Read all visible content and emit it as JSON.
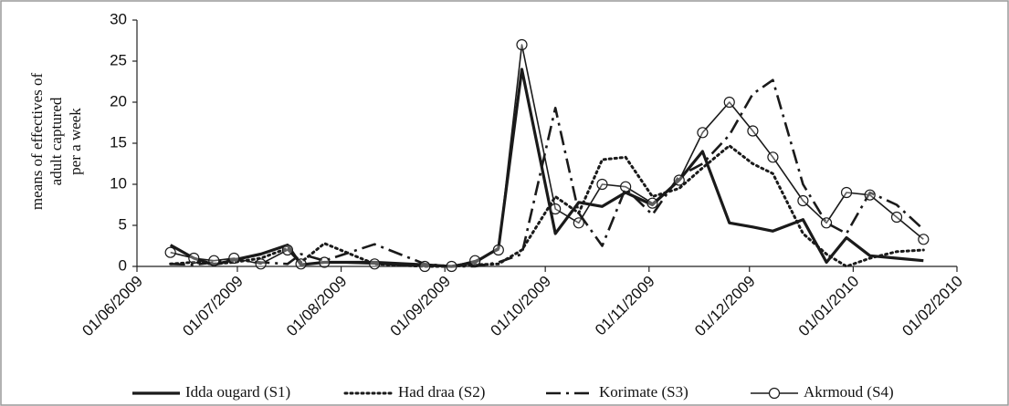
{
  "chart_data": {
    "type": "line",
    "ylabel": [
      "means of effectives of",
      "adult captured",
      "per a week"
    ],
    "x": [
      "11/06/2009",
      "18/06/2009",
      "24/06/2009",
      "30/06/2009",
      "08/07/2009",
      "16/07/2009",
      "20/07/2009",
      "27/07/2009",
      "11/08/2009",
      "26/08/2009",
      "03/09/2009",
      "10/09/2009",
      "17/09/2009",
      "24/09/2009",
      "04/10/2009",
      "11/10/2009",
      "18/10/2009",
      "25/10/2009",
      "02/11/2009",
      "10/11/2009",
      "17/11/2009",
      "25/11/2009",
      "02/12/2009",
      "08/12/2009",
      "17/12/2009",
      "24/12/2009",
      "30/12/2009",
      "06/01/2010",
      "14/01/2010",
      "22/01/2010"
    ],
    "xlim": [
      "01/06/2009",
      "01/02/2010"
    ],
    "xticks": [
      "01/06/2009",
      "01/07/2009",
      "01/08/2009",
      "01/09/2009",
      "01/10/2009",
      "01/11/2009",
      "01/12/2009",
      "01/01/2010",
      "01/02/2010"
    ],
    "ylim": [
      0,
      30
    ],
    "yticks": [
      0,
      5,
      10,
      15,
      20,
      25,
      30
    ],
    "series": [
      {
        "name": "Idda ougard (S1)",
        "color": "#1a1a1a",
        "style": "solid",
        "width": 3.2,
        "marker": "none",
        "values": [
          2.6,
          1.0,
          0.2,
          0.8,
          1.5,
          2.6,
          0.2,
          0.5,
          0.5,
          0.2,
          0,
          0.5,
          2.2,
          24,
          4,
          7.8,
          7.3,
          9,
          7.5,
          10.5,
          14,
          5.3,
          4.8,
          4.3,
          5.7,
          0.5,
          3.5,
          1.3,
          1.0,
          0.7
        ]
      },
      {
        "name": "Had draa (S2)",
        "color": "#1a1a1a",
        "style": "dotted",
        "width": 3,
        "marker": "none",
        "values": [
          0.3,
          0.5,
          0.3,
          0.5,
          1.0,
          2.2,
          0.5,
          2.8,
          0.3,
          0,
          0,
          0.2,
          0.3,
          2,
          8.5,
          6.5,
          13,
          13.3,
          8.5,
          9.5,
          12,
          14.7,
          12.5,
          11.3,
          4,
          1.5,
          0,
          1,
          1.8,
          2
        ]
      },
      {
        "name": "Korimate (S3)",
        "color": "#1a1a1a",
        "style": "dashdot",
        "width": 2.6,
        "marker": "none",
        "values": [
          0.3,
          0.2,
          0.5,
          0.8,
          0.5,
          0.3,
          1.5,
          0.7,
          2.7,
          0.3,
          0,
          0,
          0.5,
          1.5,
          19.3,
          6.5,
          2.5,
          9.5,
          6.3,
          11,
          12.5,
          16,
          21,
          22.7,
          10,
          5.3,
          4,
          9,
          7.5,
          4.5
        ]
      },
      {
        "name": "Akrmoud (S4)",
        "color": "#1a1a1a",
        "style": "solid",
        "width": 1.6,
        "marker": "circle",
        "values": [
          1.7,
          1.0,
          0.7,
          1.0,
          0.3,
          2.0,
          0.3,
          0.5,
          0.3,
          0,
          0,
          0.7,
          2,
          27,
          7,
          5.3,
          10,
          9.7,
          7.7,
          10.5,
          16.3,
          20,
          16.5,
          13.3,
          8,
          5.3,
          9,
          8.7,
          6,
          3.3
        ]
      }
    ]
  }
}
